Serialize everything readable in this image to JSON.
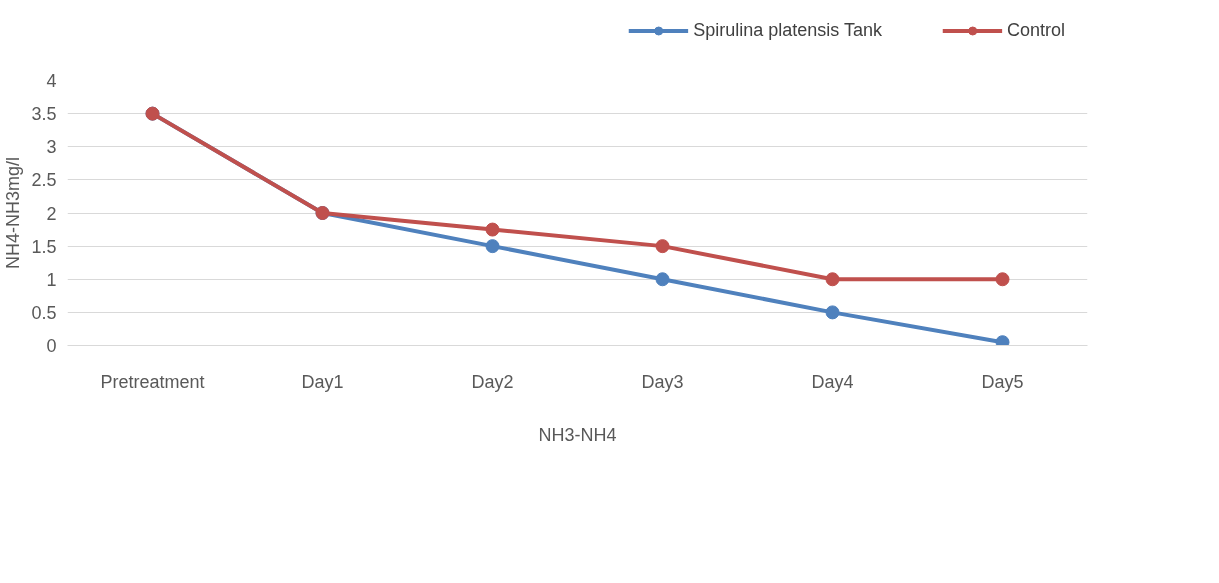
{
  "chart_data": {
    "type": "line",
    "xlabel": "NH3-NH4",
    "ylabel": "NH4-NH3mg/l",
    "categories": [
      "Pretreatment",
      "Day1",
      "Day2",
      "Day3",
      "Day4",
      "Day5"
    ],
    "series": [
      {
        "name": "Spirulina platensis Tank",
        "color": "#4f81bd",
        "values": [
          3.5,
          2,
          1.5,
          1,
          0.5,
          0.05
        ]
      },
      {
        "name": "Control",
        "color": "#c0504d",
        "values": [
          3.5,
          2,
          1.75,
          1.5,
          1,
          1
        ]
      }
    ],
    "ylim": [
      0,
      4
    ],
    "yticks": [
      0,
      0.5,
      1,
      1.5,
      2,
      2.5,
      3,
      3.5,
      4
    ],
    "grid": "y",
    "legend": "top right",
    "marker": "circle",
    "line_style": "solid"
  }
}
